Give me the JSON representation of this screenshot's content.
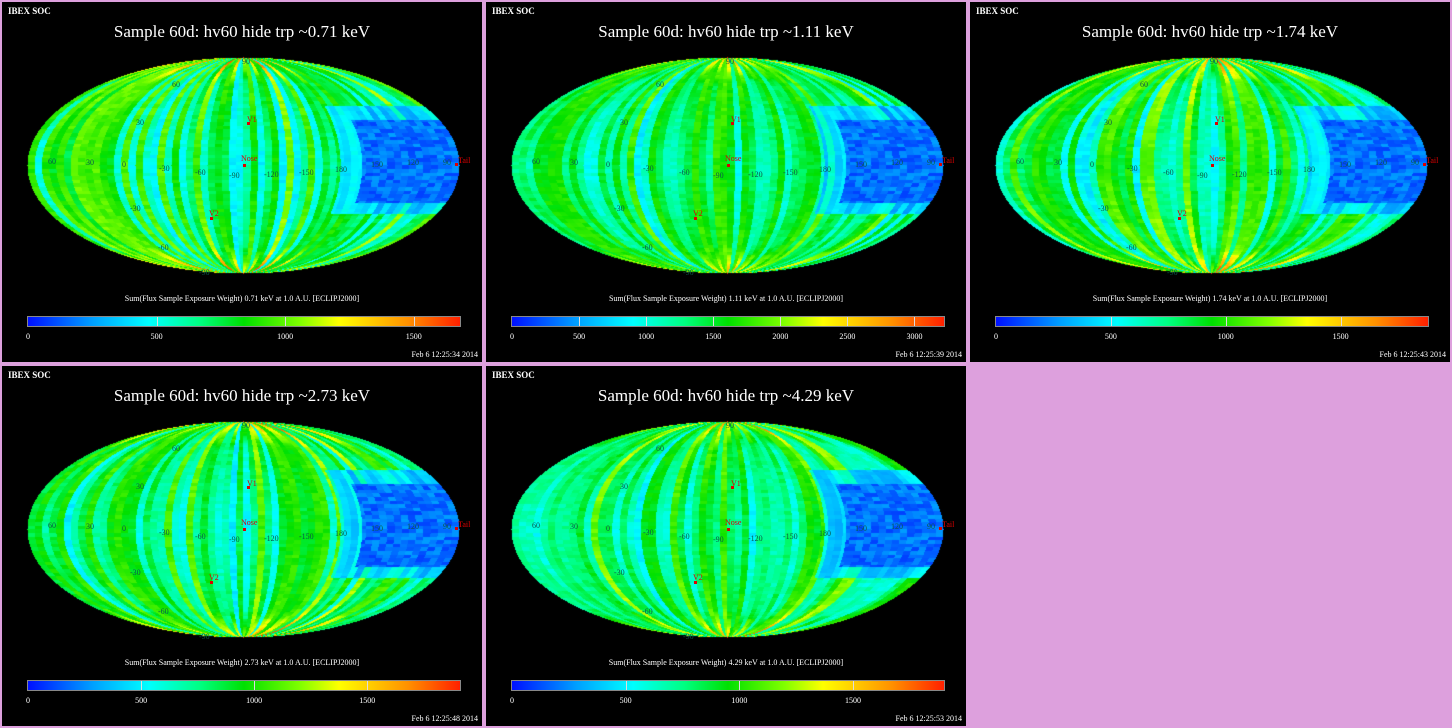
{
  "header": "IBEX SOC",
  "map_labels": {
    "longitudes": [
      "60",
      "30",
      "0",
      "-30",
      "-60",
      "-90",
      "-120",
      "-150",
      "180",
      "150",
      "120",
      "90"
    ],
    "latitudes": [
      "90",
      "60",
      "30",
      "-30",
      "-60",
      "-90"
    ],
    "markers": [
      "V1",
      "Nose",
      "V2",
      "Tail"
    ]
  },
  "chart_data": [
    {
      "type": "heatmap",
      "title": "Sample 60d: hv60 hide trp ~0.71 keV",
      "caption": "Sum(Flux Sample Exposure Weight)  0.71 keV at 1.0 A.U. [ECLIPJ2000]",
      "colorbar_ticks": [
        "0",
        "500",
        "1000",
        "1500"
      ],
      "colorbar_range": [
        0,
        1680
      ],
      "timestamp": "Feb  6 12:25:34 2014"
    },
    {
      "type": "heatmap",
      "title": "Sample 60d: hv60 hide trp ~1.11 keV",
      "caption": "Sum(Flux Sample Exposure Weight)  1.11 keV at 1.0 A.U. [ECLIPJ2000]",
      "colorbar_ticks": [
        "0",
        "500",
        "1000",
        "1500",
        "2000",
        "2500",
        "3000"
      ],
      "colorbar_range": [
        0,
        3220
      ],
      "timestamp": "Feb  6 12:25:39 2014"
    },
    {
      "type": "heatmap",
      "title": "Sample 60d: hv60 hide trp ~1.74 keV",
      "caption": "Sum(Flux Sample Exposure Weight)  1.74 keV at 1.0 A.U. [ECLIPJ2000]",
      "colorbar_ticks": [
        "0",
        "500",
        "1000",
        "1500"
      ],
      "colorbar_range": [
        0,
        1880
      ],
      "timestamp": "Feb  6 12:25:43 2014"
    },
    {
      "type": "heatmap",
      "title": "Sample 60d: hv60 hide trp ~2.73 keV",
      "caption": "Sum(Flux Sample Exposure Weight)  2.73 keV at 1.0 A.U. [ECLIPJ2000]",
      "colorbar_ticks": [
        "0",
        "500",
        "1000",
        "1500"
      ],
      "colorbar_range": [
        0,
        1910
      ],
      "timestamp": "Feb  6 12:25:48 2014"
    },
    {
      "type": "heatmap",
      "title": "Sample 60d: hv60 hide trp ~4.29 keV",
      "caption": "Sum(Flux Sample Exposure Weight)  4.29 keV at 1.0 A.U. [ECLIPJ2000]",
      "colorbar_ticks": [
        "0",
        "500",
        "1000",
        "1500"
      ],
      "colorbar_range": [
        0,
        1900
      ],
      "timestamp": "Feb  6 12:25:53 2014"
    }
  ],
  "colors": {
    "background": "#000000",
    "border": "#dda0dd",
    "marker": "#dd0000"
  }
}
